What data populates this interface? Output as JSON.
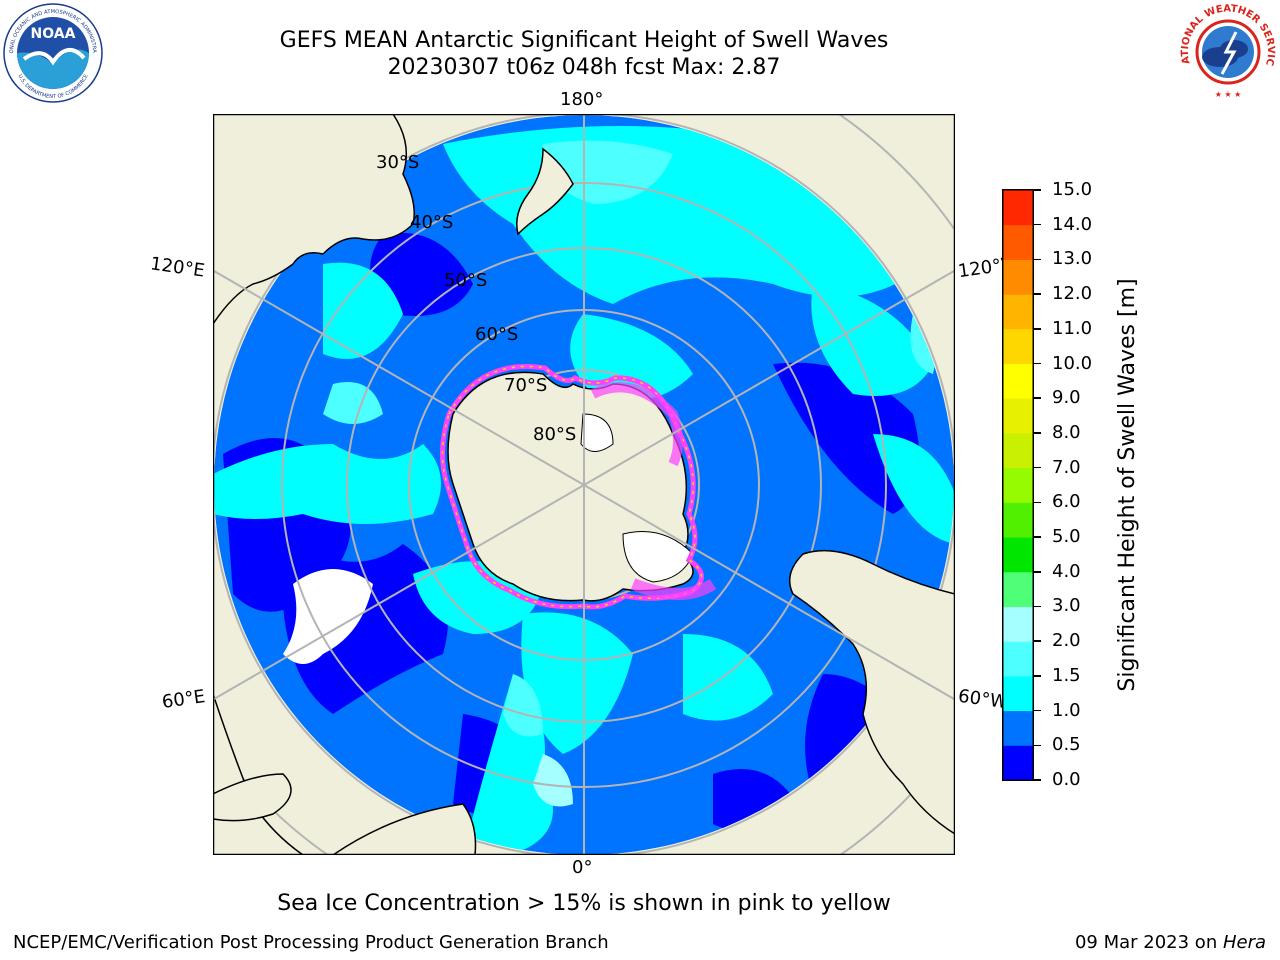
{
  "title": {
    "line1": "GEFS MEAN Antarctic Significant Height of Swell Waves",
    "line2": "20230307 t06z 048h fcst   Max: 2.87"
  },
  "map": {
    "projection": "south-polar-stereographic",
    "longitude_labels": {
      "top": "180°",
      "upper_left": "120°E",
      "upper_right": "120°W",
      "lower_left": "60°E",
      "lower_right": "60°W",
      "bottom": "0°"
    },
    "latitude_labels": [
      "30°S",
      "40°S",
      "50°S",
      "60°S",
      "70°S",
      "80°S"
    ],
    "colors": {
      "land": "#efefdc",
      "no_data": "#ffffff",
      "grid": "#b4b4b4",
      "ice_edge": "#ff40ff"
    }
  },
  "colorbar": {
    "title": "Significant Height of Swell Waves [m]",
    "ticks": [
      "0.0",
      "0.5",
      "1.0",
      "1.5",
      "2.0",
      "3.0",
      "4.0",
      "5.0",
      "6.0",
      "7.0",
      "8.0",
      "9.0",
      "10.0",
      "11.0",
      "12.0",
      "13.0",
      "14.0",
      "15.0"
    ],
    "colors": [
      "#0000ff",
      "#0073ff",
      "#00ffff",
      "#4dffff",
      "#a6ffff",
      "#50ff78",
      "#00e600",
      "#50f000",
      "#96fa00",
      "#c8f000",
      "#e6f000",
      "#ffff00",
      "#ffd700",
      "#ffb400",
      "#ff8c00",
      "#ff5a00",
      "#ff2800"
    ]
  },
  "note": "Sea Ice Concentration > 15% is shown in pink to yellow",
  "footer": {
    "left": "NCEP/EMC/Verification Post Processing Product Generation Branch",
    "right_prefix": "09 Mar 2023 on ",
    "right_machine": "Hera"
  },
  "logos": {
    "noaa_text": "NOAA",
    "noaa_ring_top": "NATIONAL OCEANIC AND ATMOSPHERIC ADMINISTRATION",
    "noaa_ring_bottom": "U.S. DEPARTMENT OF COMMERCE",
    "nws_ring": "NATIONAL WEATHER SERVICE"
  }
}
